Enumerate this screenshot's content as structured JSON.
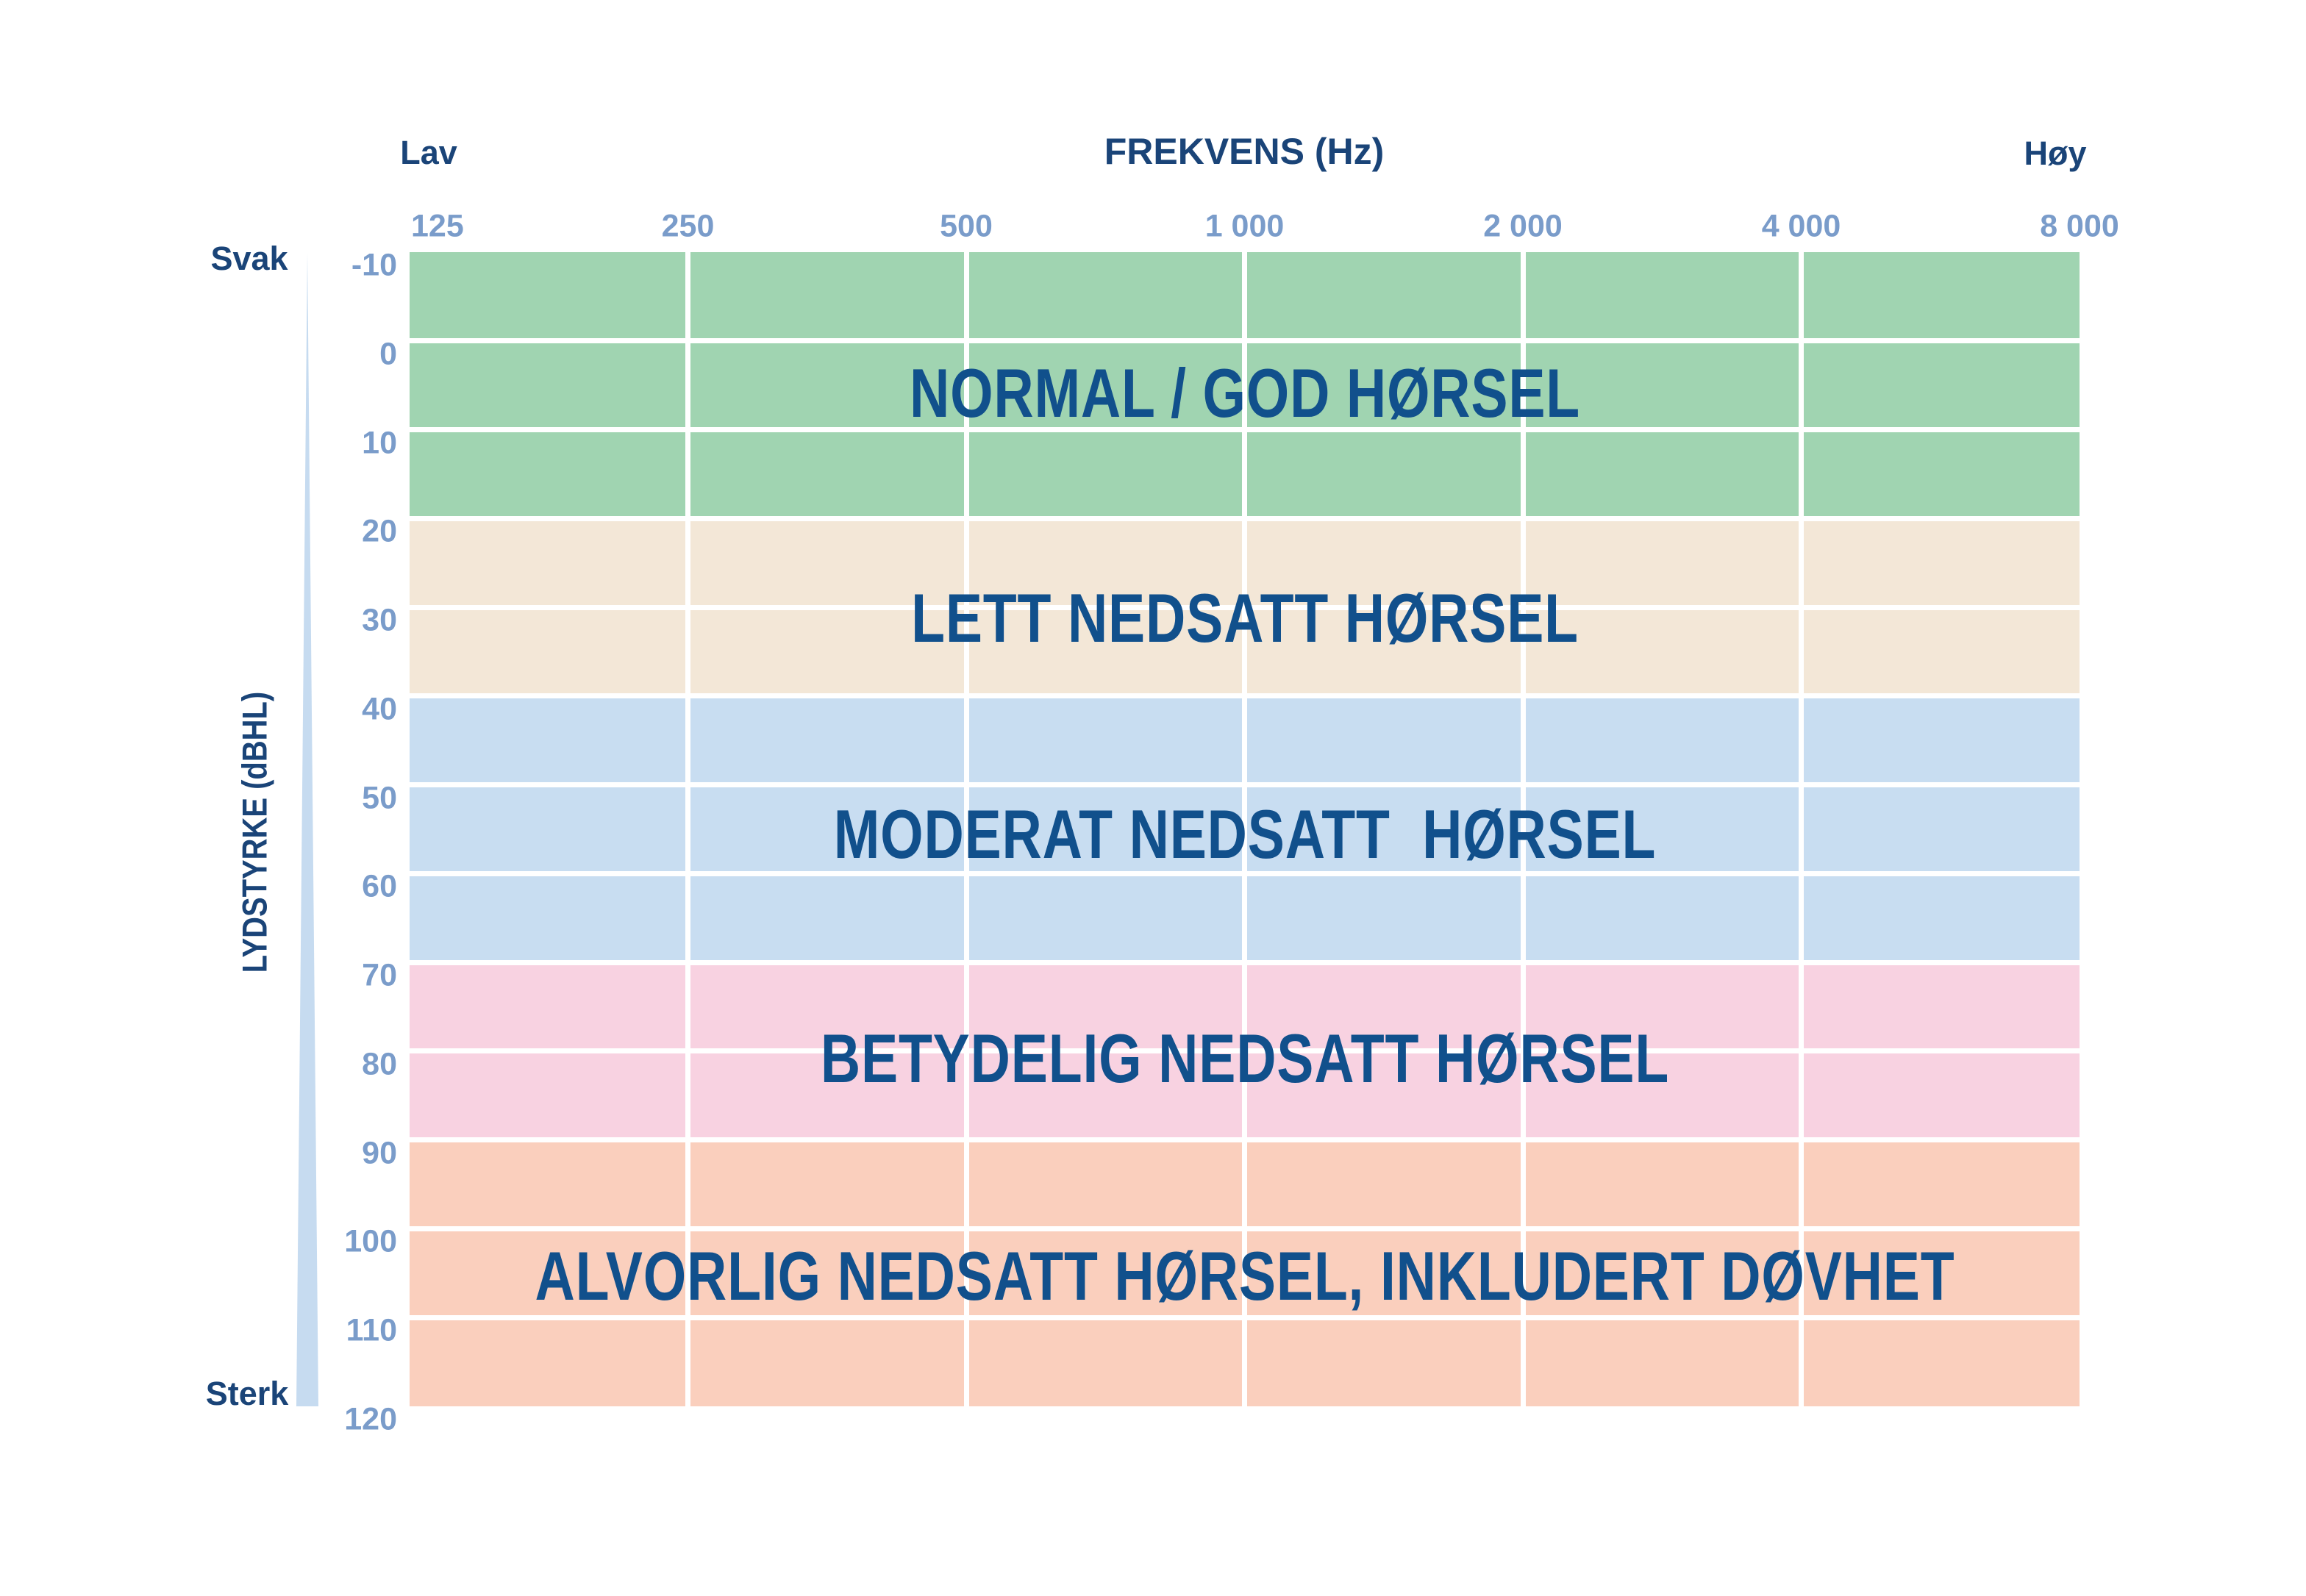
{
  "page": {
    "background": "#ffffff"
  },
  "axis_x": {
    "title": "FREKVENS (Hz)",
    "low_label": "Lav",
    "high_label": "Høy",
    "ticks": [
      "125",
      "250",
      "500",
      "1 000",
      "2 000",
      "4 000",
      "8 000"
    ]
  },
  "axis_y": {
    "title": "LYDSTYRKE (dBHL)",
    "soft_label": "Svak",
    "loud_label": "Sterk",
    "ticks": [
      "-10",
      "0",
      "10",
      "20",
      "30",
      "40",
      "50",
      "60",
      "70",
      "80",
      "90",
      "100",
      "110",
      "120"
    ]
  },
  "bands": [
    {
      "label": "NORMAL / GOD HØRSEL",
      "db_from": -10,
      "db_to": 20,
      "rows": 3,
      "color": "#a0d4b1"
    },
    {
      "label": "LETT NEDSATT HØRSEL",
      "db_from": 20,
      "db_to": 40,
      "rows": 2,
      "color": "#f3e7d7"
    },
    {
      "label": "MODERAT NEDSATT  HØRSEL",
      "db_from": 40,
      "db_to": 70,
      "rows": 3,
      "color": "#c8ddf1"
    },
    {
      "label": "BETYDELIG NEDSATT HØRSEL",
      "db_from": 70,
      "db_to": 90,
      "rows": 2,
      "color": "#f8d2e1"
    },
    {
      "label": "ALVORLIG NEDSATT HØRSEL, INKLUDERT DØVHET",
      "db_from": 90,
      "db_to": 120,
      "rows": 3,
      "color": "#facfbd"
    }
  ],
  "colors": {
    "band_text": "#11508c",
    "axis_words": "#1a4478",
    "tick_text": "#7a9cca",
    "grid_line": "#ffffff",
    "wedge": "#c6dbf0"
  },
  "chart_data": {
    "type": "heatmap",
    "title": "",
    "xlabel": "FREKVENS (Hz)",
    "ylabel": "LYDSTYRKE (dBHL)",
    "x_ticks_hz": [
      125,
      250,
      500,
      1000,
      2000,
      4000,
      8000
    ],
    "y_ticks_dbhl": [
      -10,
      0,
      10,
      20,
      30,
      40,
      50,
      60,
      70,
      80,
      90,
      100,
      110,
      120
    ],
    "x_range_hz": [
      125,
      8000
    ],
    "x_scale": "log2",
    "ylim": [
      -10,
      120
    ],
    "y_direction": "increasing-downward",
    "grid": true,
    "annotations": {
      "x_low": "Lav",
      "x_high": "Høy",
      "y_top": "Svak",
      "y_bottom": "Sterk"
    },
    "bands": [
      {
        "label": "NORMAL / GOD HØRSEL",
        "db_from": -10,
        "db_to": 20,
        "color": "#a0d4b1"
      },
      {
        "label": "LETT NEDSATT HØRSEL",
        "db_from": 20,
        "db_to": 40,
        "color": "#f3e7d7"
      },
      {
        "label": "MODERAT NEDSATT  HØRSEL",
        "db_from": 40,
        "db_to": 70,
        "color": "#c8ddf1"
      },
      {
        "label": "BETYDELIG NEDSATT HØRSEL",
        "db_from": 70,
        "db_to": 90,
        "color": "#f8d2e1"
      },
      {
        "label": "ALVORLIG NEDSATT HØRSEL, INKLUDERT DØVHET",
        "db_from": 90,
        "db_to": 120,
        "color": "#facfbd"
      }
    ]
  }
}
